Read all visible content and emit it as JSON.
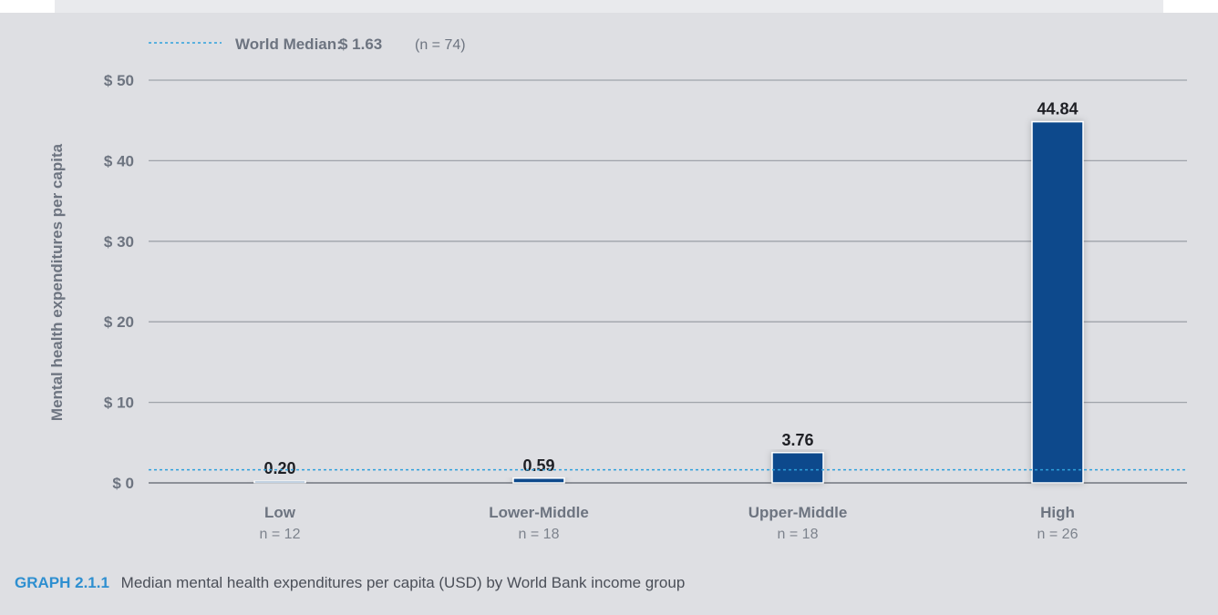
{
  "chart_data": {
    "type": "bar",
    "categories": [
      "Low",
      "Lower-Middle",
      "Upper-Middle",
      "High"
    ],
    "sample_sizes": [
      "n = 12",
      "n = 18",
      "n = 18",
      "n = 26"
    ],
    "values": [
      0.2,
      0.59,
      3.76,
      44.84
    ],
    "data_labels": [
      "0.20",
      "0.59",
      "3.76",
      "44.84"
    ],
    "ylabel": "Mental health expenditures per capita",
    "xlabel": "",
    "ylim": [
      0,
      50
    ],
    "yticks": [
      0,
      10,
      20,
      30,
      40,
      50
    ],
    "ytick_labels": [
      "$ 0",
      "$ 10",
      "$ 20",
      "$ 30",
      "$ 40",
      "$ 50"
    ],
    "reference_line": {
      "value": 1.63,
      "label": "World Median:",
      "value_label": "$ 1.63",
      "n_label": "(n = 74)"
    },
    "grid": true,
    "legend": "top-left"
  },
  "colors": {
    "bar": "#0a4a8c",
    "reference_line": "#2ea0dc",
    "grid": "#9fa3aa",
    "axis_text": "#6d7480"
  },
  "caption": {
    "label": "GRAPH 2.1.1",
    "text": "Median mental health expenditures per capita (USD) by World Bank income group"
  }
}
